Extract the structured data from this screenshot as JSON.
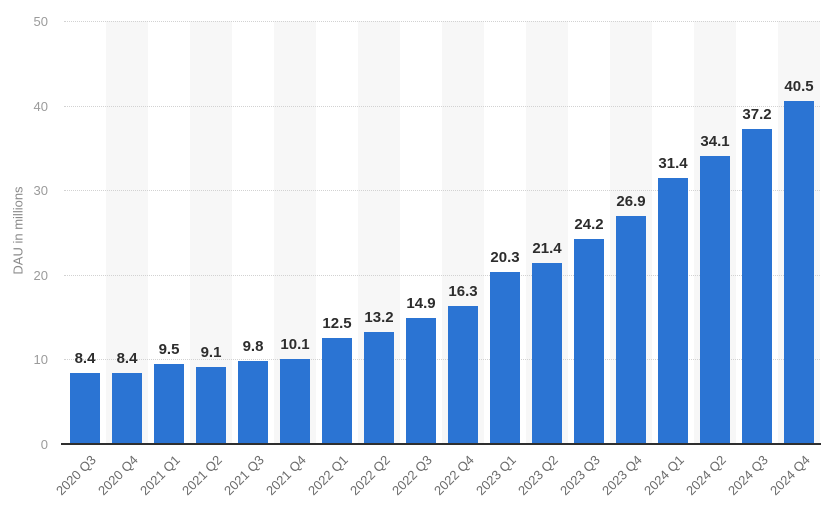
{
  "chart_data": {
    "type": "bar",
    "categories": [
      "2020 Q3",
      "2020 Q4",
      "2021 Q1",
      "2021 Q2",
      "2021 Q3",
      "2021 Q4",
      "2022 Q1",
      "2022 Q2",
      "2022 Q3",
      "2022 Q4",
      "2023 Q1",
      "2023 Q2",
      "2023 Q3",
      "2023 Q4",
      "2024 Q1",
      "2024 Q2",
      "2024 Q3",
      "2024 Q4"
    ],
    "values": [
      8.4,
      8.4,
      9.5,
      9.1,
      9.8,
      10.1,
      12.5,
      13.2,
      14.9,
      16.3,
      20.3,
      21.4,
      24.2,
      26.9,
      31.4,
      34.1,
      37.2,
      40.5
    ],
    "title": "",
    "xlabel": "",
    "ylabel": "DAU in millions",
    "ylim": [
      0,
      50
    ],
    "yticks": [
      0,
      10,
      20,
      30,
      40,
      50
    ],
    "grid": "dotted horizontal",
    "legend": "none",
    "colors": {
      "bar": "#2b74d3",
      "stripe": "#f7f7f7",
      "gridline": "#d2d2d2",
      "axis_line": "#2f2f2f",
      "value_label": "#2d2d2d",
      "tick_label": "#9b9b9b",
      "x_label": "#6b6b6b",
      "axis_title": "#8a8a8a",
      "background": "#ffffff"
    }
  }
}
